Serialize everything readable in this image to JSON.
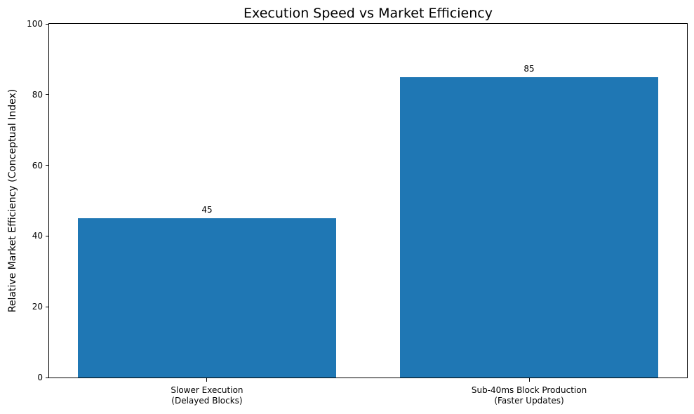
{
  "figure": {
    "background": "#ffffff"
  },
  "chart_data": {
    "type": "bar",
    "title": "Execution Speed vs Market Efficiency",
    "xlabel": "",
    "ylabel": "Relative Market Efficiency (Conceptual Index)",
    "categories": [
      "Slower Execution\n(Delayed Blocks)",
      "Sub-40ms Block Production\n(Faster Updates)"
    ],
    "values": [
      45,
      85
    ],
    "bar_value_labels": [
      "45",
      "85"
    ],
    "ylim": [
      0,
      100
    ],
    "yticks": [
      0,
      20,
      40,
      60,
      80,
      100
    ],
    "bar_color": "#1f77b4",
    "axis_color": "#000000",
    "text_color": "#000000",
    "grid": false,
    "legend_position": "none"
  }
}
